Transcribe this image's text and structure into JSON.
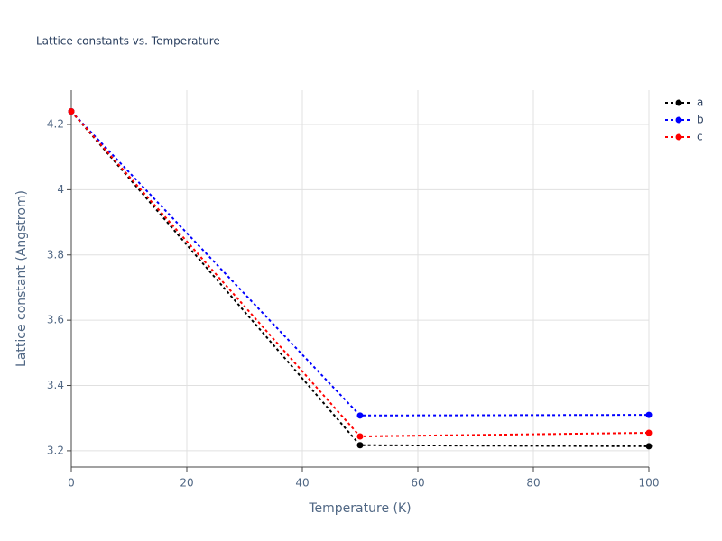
{
  "chart_data": {
    "type": "line",
    "title": "Lattice constants vs. Temperature",
    "x_label": "Temperature (K)",
    "y_label": "Lattice constant (Angstrom)",
    "x": [
      0,
      50,
      100
    ],
    "series": [
      {
        "name": "a",
        "color": "#000000",
        "values": [
          4.24,
          3.217,
          3.214
        ]
      },
      {
        "name": "b",
        "color": "#0000ff",
        "values": [
          4.24,
          3.308,
          3.31
        ]
      },
      {
        "name": "c",
        "color": "#ff0000",
        "values": [
          4.24,
          3.244,
          3.255
        ]
      }
    ],
    "xlim": [
      0,
      100
    ],
    "xticks": [
      0,
      20,
      40,
      60,
      80,
      100
    ],
    "ylim": [
      3.15,
      4.305
    ],
    "yticks": [
      3.2,
      3.4,
      3.6,
      3.8,
      4,
      4.2
    ],
    "grid": true,
    "line_style": "dot",
    "legend_position": "right"
  }
}
